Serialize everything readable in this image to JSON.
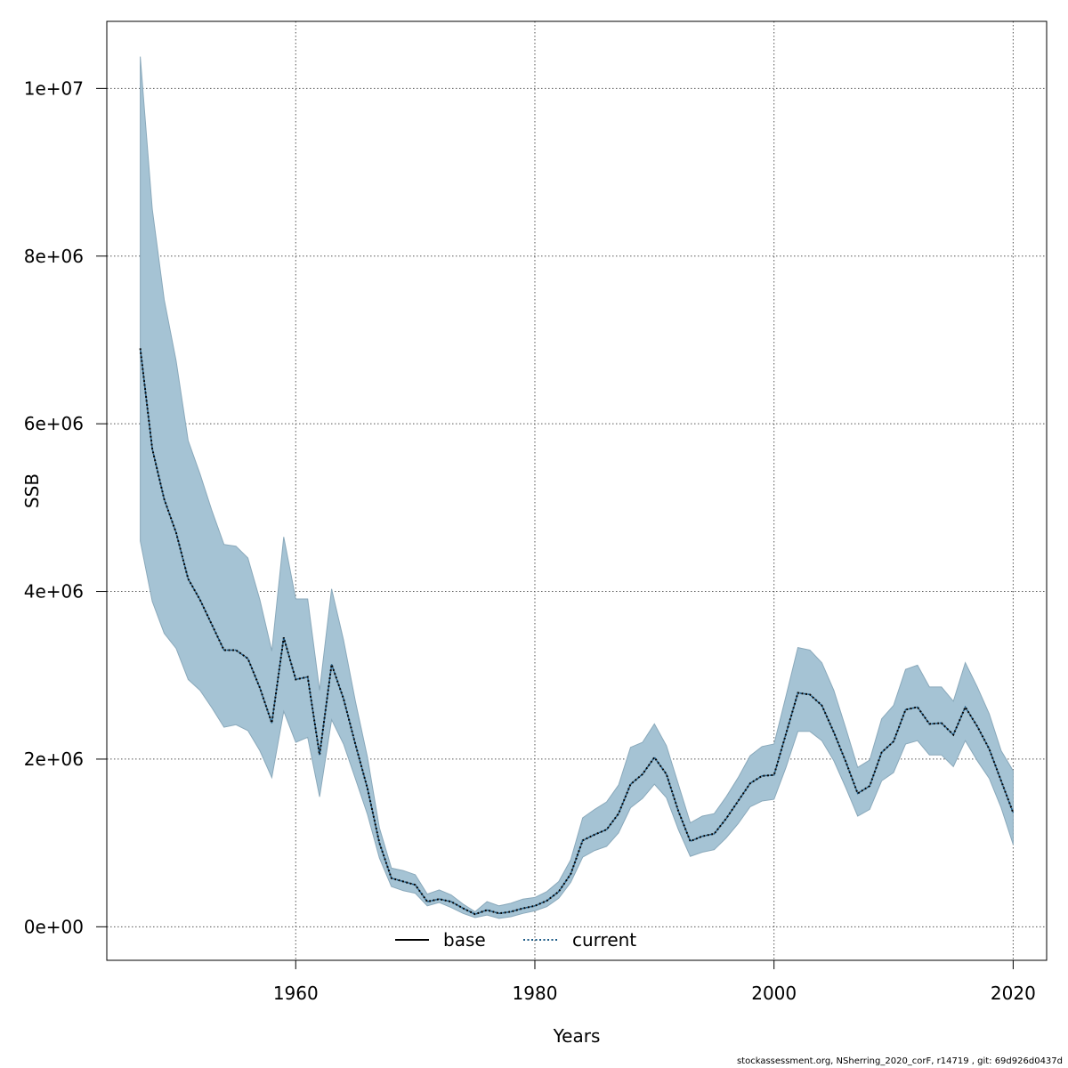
{
  "chart_data": {
    "type": "line",
    "xlabel": "Years",
    "ylabel": "SSB",
    "xlim": [
      1944.2,
      2022.8
    ],
    "ylim": [
      -400000,
      10800000
    ],
    "x_ticks": [
      1960,
      1980,
      2000,
      2020
    ],
    "x_tick_labels": [
      "1960",
      "1980",
      "2000",
      "2020"
    ],
    "y_ticks": [
      0,
      2000000,
      4000000,
      6000000,
      8000000,
      10000000
    ],
    "y_tick_labels": [
      "0e+00",
      "2e+06",
      "4e+06",
      "6e+06",
      "8e+06",
      "1e+07"
    ],
    "grid": true,
    "legend_position": "bottom-center",
    "colors": {
      "band": "#a5c3d4",
      "band_edge": "#8aa9bb",
      "line": "#000000",
      "current": "#1b5a86",
      "grid": "#555555"
    },
    "x": [
      1947,
      1948,
      1949,
      1950,
      1951,
      1952,
      1953,
      1954,
      1955,
      1956,
      1957,
      1958,
      1959,
      1960,
      1961,
      1962,
      1963,
      1964,
      1965,
      1966,
      1967,
      1968,
      1969,
      1970,
      1971,
      1972,
      1973,
      1974,
      1975,
      1976,
      1977,
      1978,
      1979,
      1980,
      1981,
      1982,
      1983,
      1984,
      1985,
      1986,
      1987,
      1988,
      1989,
      1990,
      1991,
      1992,
      1993,
      1994,
      1995,
      1996,
      1997,
      1998,
      1999,
      2000,
      2001,
      2002,
      2003,
      2004,
      2005,
      2006,
      2007,
      2008,
      2009,
      2010,
      2011,
      2012,
      2013,
      2014,
      2015,
      2016,
      2017,
      2018,
      2019,
      2020
    ],
    "series": [
      {
        "name": "base",
        "style": "solid",
        "values": [
          6900000,
          5700000,
          5100000,
          4700000,
          4150000,
          3900000,
          3600000,
          3300000,
          3300000,
          3200000,
          2850000,
          2430000,
          3450000,
          2950000,
          2980000,
          2050000,
          3130000,
          2720000,
          2170000,
          1650000,
          1000000,
          580000,
          540000,
          500000,
          300000,
          330000,
          300000,
          220000,
          150000,
          200000,
          160000,
          180000,
          220000,
          250000,
          310000,
          420000,
          630000,
          1030000,
          1100000,
          1160000,
          1350000,
          1700000,
          1820000,
          2020000,
          1820000,
          1380000,
          1020000,
          1080000,
          1110000,
          1290000,
          1500000,
          1710000,
          1800000,
          1810000,
          2300000,
          2790000,
          2770000,
          2640000,
          2320000,
          1970000,
          1590000,
          1680000,
          2080000,
          2210000,
          2590000,
          2620000,
          2420000,
          2430000,
          2290000,
          2620000,
          2390000,
          2120000,
          1740000,
          1360000
        ]
      },
      {
        "name": "current",
        "style": "dotted",
        "values": [
          6900000,
          5700000,
          5100000,
          4700000,
          4150000,
          3900000,
          3600000,
          3300000,
          3300000,
          3200000,
          2850000,
          2430000,
          3450000,
          2950000,
          2980000,
          2050000,
          3130000,
          2720000,
          2170000,
          1650000,
          1000000,
          580000,
          540000,
          500000,
          300000,
          330000,
          300000,
          220000,
          150000,
          200000,
          160000,
          180000,
          220000,
          250000,
          310000,
          420000,
          630000,
          1030000,
          1100000,
          1160000,
          1350000,
          1700000,
          1820000,
          2020000,
          1820000,
          1380000,
          1020000,
          1080000,
          1110000,
          1290000,
          1500000,
          1710000,
          1800000,
          1810000,
          2300000,
          2790000,
          2770000,
          2640000,
          2320000,
          1970000,
          1590000,
          1680000,
          2080000,
          2210000,
          2590000,
          2620000,
          2420000,
          2430000,
          2290000,
          2620000,
          2390000,
          2120000,
          1740000,
          1360000
        ]
      }
    ],
    "band_upper": [
      10380000,
      8560000,
      7480000,
      6750000,
      5800000,
      5400000,
      4960000,
      4560000,
      4540000,
      4400000,
      3900000,
      3290000,
      4650000,
      3910000,
      3910000,
      2820000,
      4030000,
      3420000,
      2680000,
      2020000,
      1180000,
      700000,
      670000,
      620000,
      390000,
      440000,
      380000,
      270000,
      180000,
      300000,
      250000,
      280000,
      330000,
      350000,
      420000,
      540000,
      800000,
      1300000,
      1400000,
      1490000,
      1690000,
      2140000,
      2200000,
      2420000,
      2160000,
      1700000,
      1240000,
      1320000,
      1350000,
      1550000,
      1780000,
      2040000,
      2150000,
      2180000,
      2750000,
      3330000,
      3300000,
      3150000,
      2820000,
      2370000,
      1900000,
      1990000,
      2480000,
      2640000,
      3070000,
      3120000,
      2860000,
      2860000,
      2690000,
      3150000,
      2860000,
      2540000,
      2100000,
      1860000
    ],
    "band_lower": [
      4600000,
      3880000,
      3500000,
      3320000,
      2950000,
      2820000,
      2610000,
      2380000,
      2410000,
      2340000,
      2100000,
      1780000,
      2570000,
      2200000,
      2260000,
      1550000,
      2470000,
      2180000,
      1760000,
      1340000,
      820000,
      480000,
      430000,
      400000,
      250000,
      290000,
      230000,
      160000,
      110000,
      140000,
      100000,
      120000,
      160000,
      190000,
      240000,
      340000,
      530000,
      830000,
      910000,
      960000,
      1120000,
      1420000,
      1530000,
      1700000,
      1540000,
      1160000,
      840000,
      890000,
      920000,
      1060000,
      1230000,
      1430000,
      1500000,
      1520000,
      1900000,
      2330000,
      2330000,
      2220000,
      1980000,
      1660000,
      1320000,
      1400000,
      1740000,
      1840000,
      2180000,
      2220000,
      2050000,
      2050000,
      1910000,
      2220000,
      1980000,
      1770000,
      1420000,
      980000
    ],
    "legend": [
      "base",
      "current"
    ]
  },
  "footer": "stockassessment.org, NSherring_2020_corF, r14719 , git: 69d926d0437d"
}
